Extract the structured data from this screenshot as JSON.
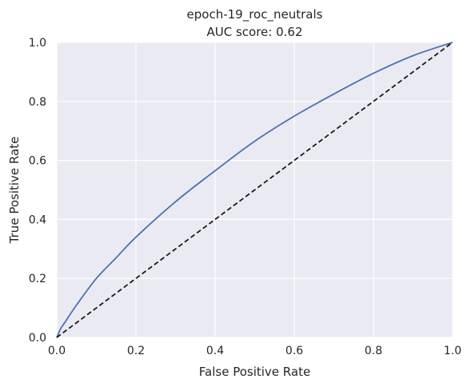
{
  "chart_data": {
    "type": "line",
    "title": "epoch-19_roc_neutrals",
    "subtitle": "AUC score: 0.62",
    "xlabel": "False Positive Rate",
    "ylabel": "True Positive Rate",
    "xlim": [
      0.0,
      1.0
    ],
    "ylim": [
      0.0,
      1.0
    ],
    "x_ticks": [
      "0.0",
      "0.2",
      "0.4",
      "0.6",
      "0.8",
      "1.0"
    ],
    "y_ticks": [
      "0.0",
      "0.2",
      "0.4",
      "0.6",
      "0.8",
      "1.0"
    ],
    "grid": true,
    "series": [
      {
        "style": "solid",
        "color": "#4c72b0",
        "points": [
          [
            0.0,
            0.0
          ],
          [
            0.01,
            0.03
          ],
          [
            0.02,
            0.05
          ],
          [
            0.05,
            0.11
          ],
          [
            0.1,
            0.2
          ],
          [
            0.15,
            0.27
          ],
          [
            0.2,
            0.34
          ],
          [
            0.3,
            0.46
          ],
          [
            0.4,
            0.565
          ],
          [
            0.5,
            0.665
          ],
          [
            0.6,
            0.75
          ],
          [
            0.7,
            0.825
          ],
          [
            0.8,
            0.895
          ],
          [
            0.9,
            0.955
          ],
          [
            1.0,
            1.0
          ]
        ]
      },
      {
        "style": "dashed",
        "color": "#1a1a1a",
        "points": [
          [
            0.0,
            0.0
          ],
          [
            1.0,
            1.0
          ]
        ]
      }
    ]
  },
  "colors": {
    "plot_background": "#eaeaf2",
    "grid": "#ffffff",
    "text": "#262626"
  }
}
